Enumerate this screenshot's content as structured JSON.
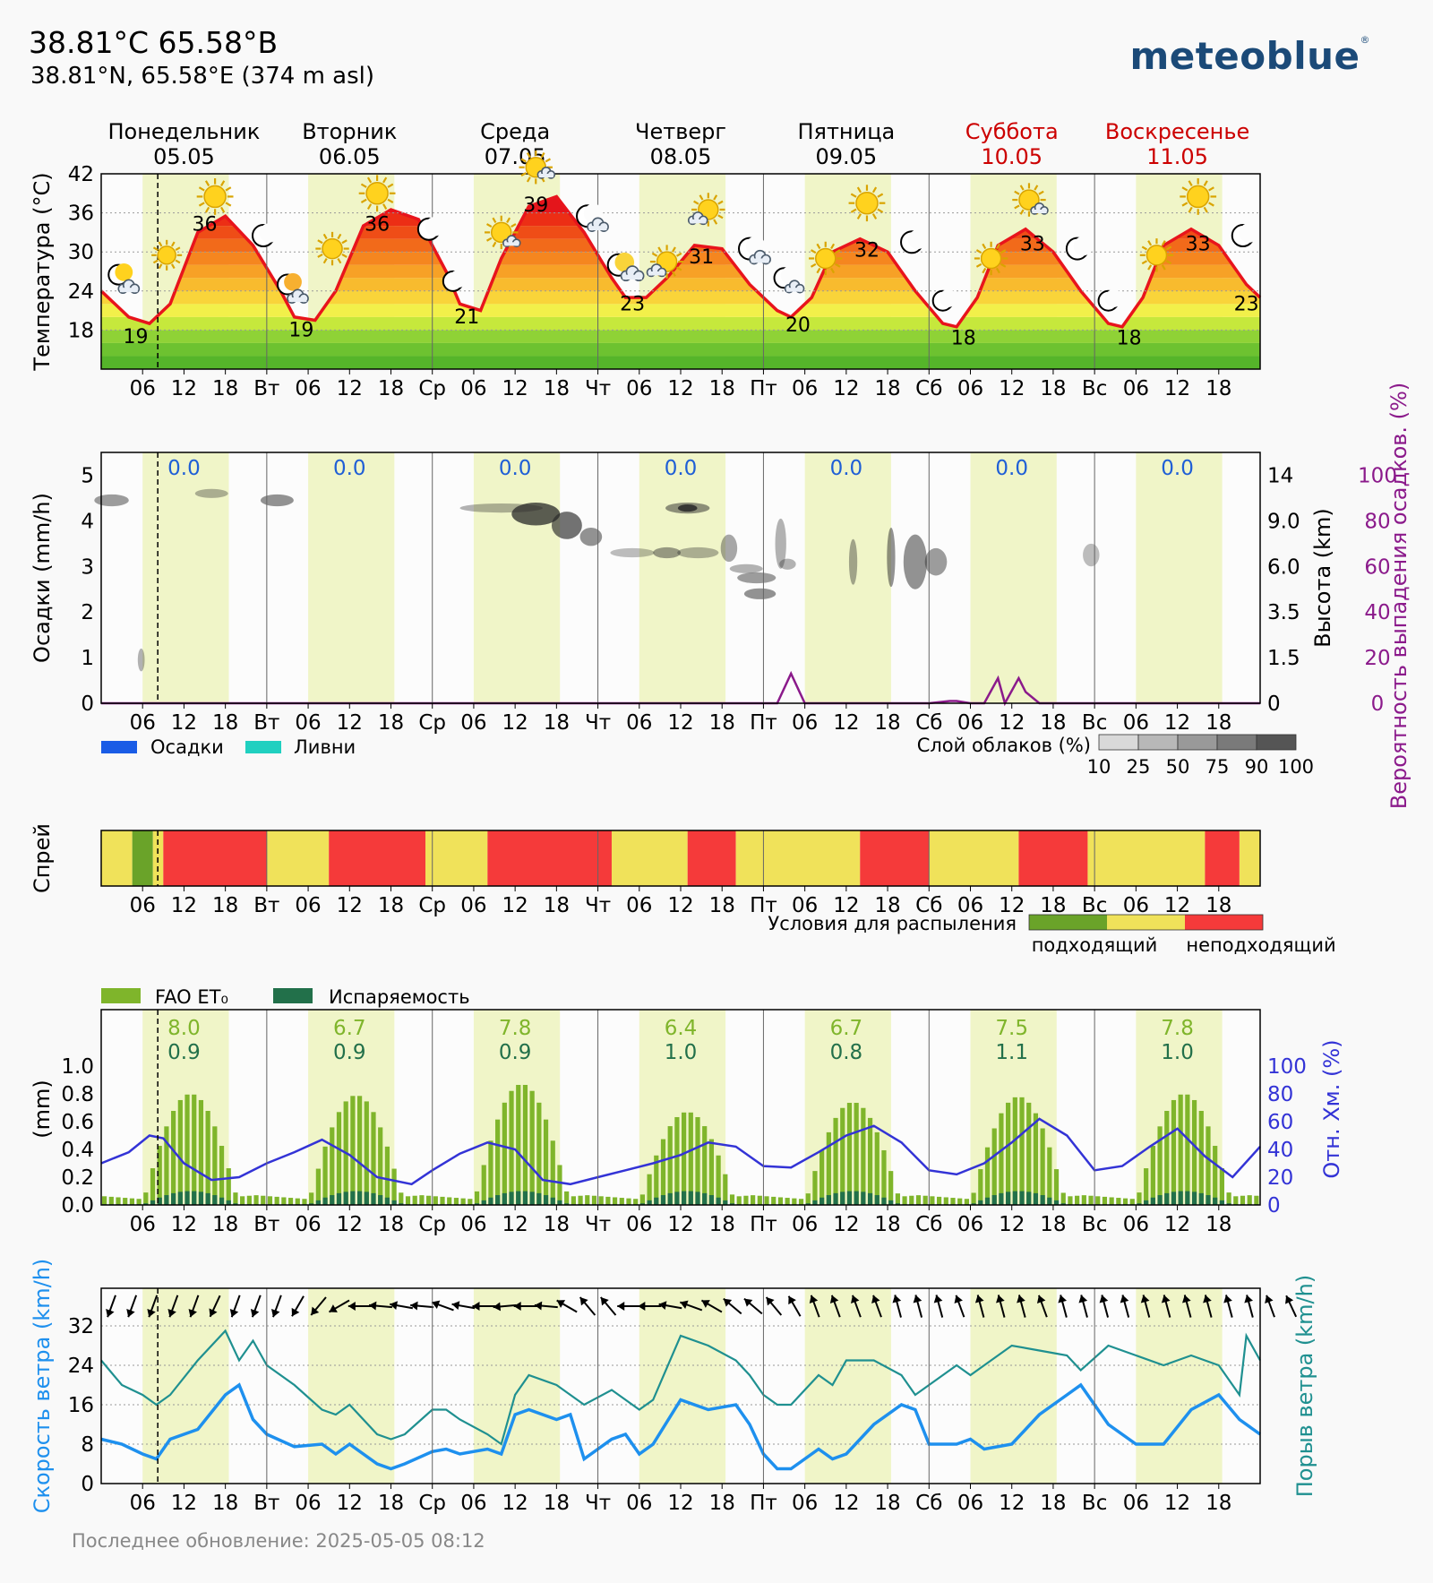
{
  "header": {
    "title": "38.81°C 65.58°В",
    "coords": "38.81°N, 65.58°E (374 m asl)",
    "brand": "meteoblue",
    "brand_mark": "®"
  },
  "footer": {
    "updated": "Последнее обновление: 2025-05-05 08:12"
  },
  "days": [
    {
      "name": "Понедельник",
      "date": "05.05",
      "weekend": false
    },
    {
      "name": "Вторник",
      "date": "06.05",
      "weekend": false
    },
    {
      "name": "Среда",
      "date": "07.05",
      "weekend": false
    },
    {
      "name": "Четверг",
      "date": "08.05",
      "weekend": false
    },
    {
      "name": "Пятница",
      "date": "09.05",
      "weekend": false
    },
    {
      "name": "Суббота",
      "date": "10.05",
      "weekend": true
    },
    {
      "name": "Воскресенье",
      "date": "11.05",
      "weekend": true
    }
  ],
  "x_ticks": [
    "06",
    "12",
    "18",
    "Вт",
    "06",
    "12",
    "18",
    "Ср",
    "06",
    "12",
    "18",
    "Чт",
    "06",
    "12",
    "18",
    "Пт",
    "06",
    "12",
    "18",
    "Сб",
    "06",
    "12",
    "18",
    "Вс",
    "06",
    "12",
    "18"
  ],
  "now_hour": 8.2,
  "colors": {
    "temp_line": "#e8141c",
    "day_band": "#f0f5c8",
    "weekend_label": "#cc0000",
    "precip_value": "#1f5fd6",
    "probability": "#8b1a8b",
    "fao": "#7fb52b",
    "evap": "#22704a",
    "humidity": "#3333d6",
    "wind": "#1e90ee",
    "gust": "#1f9090",
    "spray_good": "#6aa329",
    "spray_mid": "#f0e25a",
    "spray_bad": "#f53a3a"
  },
  "chart_data": [
    {
      "type": "area",
      "name": "temperature",
      "ylabel": "Температура (°C)",
      "ylim": [
        12,
        42
      ],
      "yticks": [
        18,
        24,
        30,
        36,
        42
      ],
      "x_hours": [
        0,
        4,
        7,
        10,
        14,
        18,
        22,
        26,
        28,
        31,
        34,
        38,
        42,
        46,
        50,
        52,
        55,
        58,
        62,
        66,
        70,
        74,
        76,
        79,
        82,
        86,
        90,
        94,
        98,
        100,
        103,
        106,
        110,
        114,
        118,
        122,
        124,
        127,
        130,
        134,
        138,
        142,
        146,
        148,
        151,
        154,
        158,
        162,
        166,
        168
      ],
      "values": [
        24,
        20,
        19,
        22,
        33,
        35.5,
        31,
        24,
        20,
        19.5,
        24,
        34,
        36.5,
        35,
        27,
        22,
        21,
        29,
        37,
        38.5,
        33,
        26,
        23,
        23,
        26,
        31,
        30.5,
        25,
        21,
        20,
        23,
        30,
        32,
        30,
        24,
        19,
        18.5,
        23,
        31,
        33.5,
        30,
        24,
        19,
        18.5,
        23,
        31,
        33.5,
        31,
        25,
        23
      ],
      "max_labels": [
        {
          "d": 0,
          "v": "36"
        },
        {
          "d": 1,
          "v": "36"
        },
        {
          "d": 2,
          "v": "39"
        },
        {
          "d": 3,
          "v": "31"
        },
        {
          "d": 4,
          "v": "32"
        },
        {
          "d": 5,
          "v": "33"
        },
        {
          "d": 6,
          "v": "33"
        }
      ],
      "min_labels": [
        {
          "d": 0,
          "v": "19"
        },
        {
          "d": 1,
          "v": "19"
        },
        {
          "d": 2,
          "v": "21"
        },
        {
          "d": 3,
          "v": "23"
        },
        {
          "d": 4,
          "v": "20"
        },
        {
          "d": 5,
          "v": "18"
        },
        {
          "d": 6,
          "v": "18"
        },
        {
          "d": 7,
          "v": "23"
        }
      ]
    },
    {
      "type": "line",
      "name": "precipitation",
      "ylabel": "Осадки (mm/h)",
      "ylim": [
        0,
        5.5
      ],
      "yticks": [
        0,
        1,
        2,
        3,
        4,
        5
      ],
      "height_label": "Высота (km)",
      "height_ticks": [
        "0",
        "1.5",
        "3.5",
        "6.0",
        "9.0",
        "14"
      ],
      "prob_label": "Вероятность выпадения осадков. (%)",
      "prob_ticks": [
        "0",
        "20",
        "40",
        "60",
        "80",
        "100"
      ],
      "daily_totals": [
        "0.0",
        "0.0",
        "0.0",
        "0.0",
        "0.0",
        "0.0",
        "0.0"
      ],
      "probability_x": [
        0,
        95,
        98,
        100,
        102,
        105,
        120,
        123,
        124,
        126,
        128,
        130,
        131,
        133,
        134,
        136,
        140,
        168
      ],
      "probability_y": [
        0,
        0,
        0,
        13,
        0,
        0,
        0,
        1,
        1,
        0,
        0,
        11,
        0,
        11,
        5,
        0,
        0,
        0
      ],
      "legend": [
        "Осадки",
        "Ливни"
      ],
      "cloud_legend_title": "Слой облаков (%)",
      "cloud_legend_ticks": [
        "10",
        "25",
        "50",
        "75",
        "90",
        "100"
      ]
    },
    {
      "type": "heatmap",
      "name": "spray",
      "ylabel": "Спрей",
      "legend_title": "Условия для распыления",
      "legend_good": "подходящий",
      "legend_bad": "неподходящий",
      "segments": [
        {
          "from": 0,
          "to": 4.5,
          "c": "mid"
        },
        {
          "from": 4.5,
          "to": 7.5,
          "c": "good"
        },
        {
          "from": 7.5,
          "to": 9,
          "c": "mid"
        },
        {
          "from": 9,
          "to": 24,
          "c": "bad"
        },
        {
          "from": 24,
          "to": 33,
          "c": "mid"
        },
        {
          "from": 33,
          "to": 47,
          "c": "bad"
        },
        {
          "from": 47,
          "to": 56,
          "c": "mid"
        },
        {
          "from": 56,
          "to": 74,
          "c": "bad"
        },
        {
          "from": 74,
          "to": 85,
          "c": "mid"
        },
        {
          "from": 85,
          "to": 92,
          "c": "bad"
        },
        {
          "from": 92,
          "to": 110,
          "c": "mid"
        },
        {
          "from": 110,
          "to": 120,
          "c": "bad"
        },
        {
          "from": 120,
          "to": 133,
          "c": "mid"
        },
        {
          "from": 133,
          "to": 143,
          "c": "bad"
        },
        {
          "from": 143,
          "to": 160,
          "c": "mid"
        },
        {
          "from": 160,
          "to": 165,
          "c": "bad"
        },
        {
          "from": 165,
          "to": 168,
          "c": "mid"
        }
      ]
    },
    {
      "type": "bar",
      "name": "evapotranspiration",
      "ylabel": "(mm)",
      "ylim": [
        0,
        1.0
      ],
      "yticks": [
        "0.0",
        "0.2",
        "0.4",
        "0.6",
        "0.8",
        "1.0"
      ],
      "rh_label": "Отн. Хм. (%)",
      "rh_ticks": [
        "0",
        "20",
        "40",
        "60",
        "80",
        "100"
      ],
      "legend_fao": "FAO ET₀",
      "legend_evap": "Испаряемость",
      "daily_fao": [
        "8.0",
        "6.7",
        "7.8",
        "6.4",
        "6.7",
        "7.5",
        "7.8"
      ],
      "daily_evap": [
        "0.9",
        "0.9",
        "0.9",
        "1.0",
        "0.8",
        "1.1",
        "1.0"
      ],
      "daily_peak_fao": [
        0.8,
        0.79,
        0.87,
        0.67,
        0.74,
        0.78,
        0.8
      ],
      "humidity_x": [
        0,
        4,
        7,
        9,
        12,
        16,
        20,
        24,
        28,
        32,
        36,
        40,
        45,
        48,
        52,
        56,
        60,
        64,
        68,
        72,
        76,
        80,
        84,
        88,
        92,
        96,
        100,
        104,
        108,
        112,
        116,
        120,
        124,
        128,
        132,
        136,
        140,
        144,
        148,
        152,
        156,
        160,
        164,
        168
      ],
      "humidity_y": [
        30,
        38,
        50,
        48,
        30,
        18,
        20,
        30,
        38,
        47,
        36,
        20,
        15,
        25,
        37,
        45,
        40,
        18,
        15,
        20,
        25,
        30,
        36,
        45,
        42,
        28,
        27,
        38,
        50,
        57,
        45,
        25,
        22,
        30,
        45,
        62,
        50,
        25,
        28,
        42,
        55,
        35,
        20,
        42
      ]
    },
    {
      "type": "line",
      "name": "wind",
      "ylabel": "Скорость ветра (km/h)",
      "ylabel2": "Порыв ветра (km/h)",
      "ylim": [
        0,
        38
      ],
      "yticks": [
        0,
        8,
        16,
        24,
        32
      ],
      "wind_x": [
        0,
        3,
        6,
        8,
        10,
        14,
        18,
        20,
        22,
        24,
        28,
        32,
        34,
        36,
        40,
        42,
        44,
        48,
        50,
        52,
        56,
        58,
        60,
        62,
        66,
        68,
        70,
        74,
        76,
        78,
        80,
        84,
        88,
        92,
        94,
        96,
        98,
        100,
        104,
        106,
        108,
        112,
        116,
        118,
        120,
        124,
        126,
        128,
        132,
        136,
        140,
        142,
        146,
        150,
        154,
        158,
        162,
        165,
        168
      ],
      "wind_y": [
        9,
        8,
        6,
        5,
        9,
        11,
        18,
        20,
        13,
        10,
        7.5,
        8,
        6,
        8,
        4,
        3,
        4,
        6.5,
        7,
        6,
        7,
        6,
        14,
        15,
        13,
        14,
        5,
        9,
        10,
        6,
        8,
        17,
        15,
        16,
        12,
        6,
        3,
        3,
        7,
        5,
        6,
        12,
        16,
        15,
        8,
        8,
        9,
        7,
        8,
        14,
        18,
        20,
        12,
        8,
        8,
        15,
        18,
        13,
        10
      ],
      "gust_x": [
        0,
        3,
        6,
        8,
        10,
        14,
        18,
        20,
        22,
        24,
        28,
        32,
        34,
        36,
        40,
        42,
        44,
        48,
        50,
        52,
        56,
        58,
        60,
        62,
        66,
        68,
        70,
        74,
        76,
        78,
        80,
        84,
        88,
        92,
        94,
        96,
        98,
        100,
        104,
        106,
        108,
        112,
        116,
        118,
        120,
        124,
        126,
        128,
        132,
        136,
        140,
        142,
        146,
        150,
        154,
        158,
        162,
        165,
        166,
        168
      ],
      "gust_y": [
        25,
        20,
        18,
        16,
        18,
        25,
        31,
        25,
        29,
        24,
        20,
        15,
        14,
        16,
        10,
        9,
        10,
        15,
        15,
        13,
        10,
        8,
        18,
        22,
        20,
        18,
        16,
        19,
        17,
        15,
        17,
        30,
        28,
        25,
        22,
        18,
        16,
        16,
        22,
        20,
        25,
        25,
        22,
        18,
        20,
        24,
        22,
        24,
        28,
        27,
        26,
        23,
        28,
        26,
        24,
        26,
        24,
        18,
        30,
        25
      ],
      "arrow_deg": [
        200,
        200,
        200,
        200,
        200,
        205,
        200,
        200,
        200,
        210,
        220,
        240,
        270,
        275,
        280,
        275,
        290,
        280,
        270,
        265,
        270,
        275,
        300,
        320,
        320,
        270,
        270,
        280,
        290,
        300,
        310,
        310,
        320,
        330,
        340,
        340,
        340,
        340,
        345,
        345,
        345,
        340,
        345,
        345,
        345,
        340,
        345,
        345,
        345,
        345,
        345,
        345,
        345,
        345,
        345,
        345,
        340,
        335
      ]
    }
  ]
}
